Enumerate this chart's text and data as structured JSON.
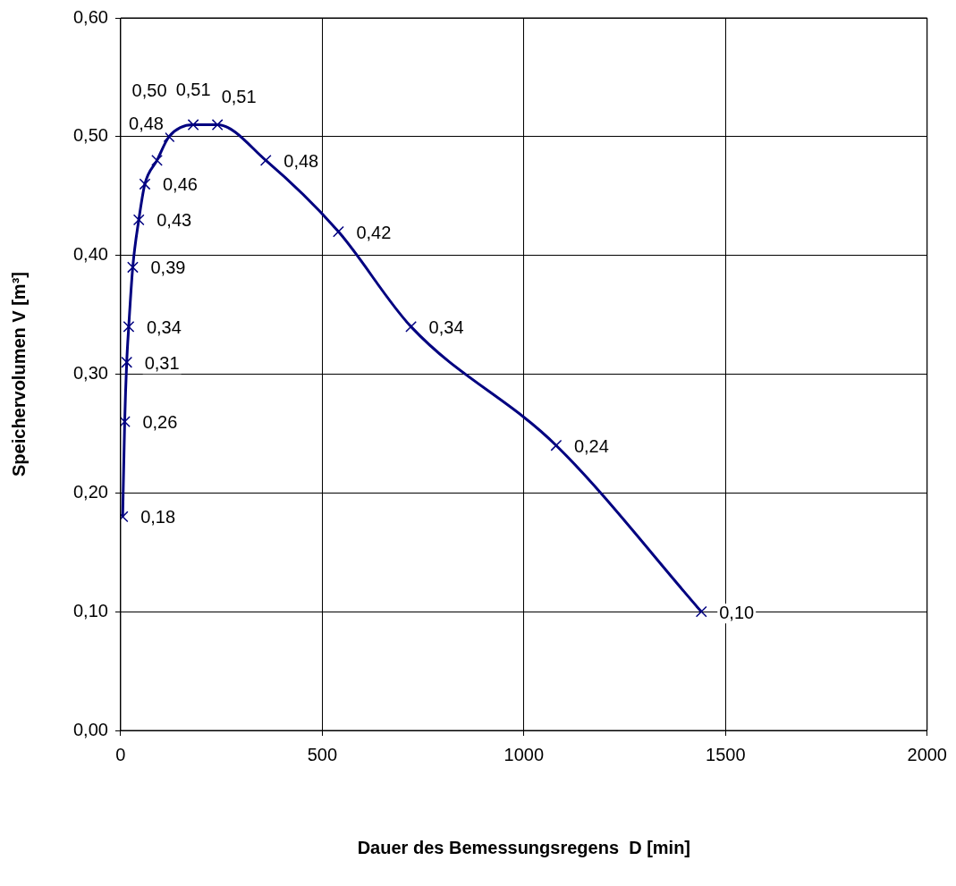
{
  "chart_data": {
    "type": "line",
    "xlabel": "Dauer des Bemessungsregens  D [min]",
    "ylabel": "Speichervolumen V [m³]",
    "x": [
      5,
      10,
      15,
      20,
      30,
      45,
      60,
      90,
      120,
      180,
      240,
      360,
      540,
      720,
      1080,
      1440
    ],
    "series": [
      {
        "color": "#000080",
        "values": [
          0.18,
          0.26,
          0.31,
          0.34,
          0.39,
          0.43,
          0.46,
          0.48,
          0.5,
          0.51,
          0.51,
          0.48,
          0.42,
          0.34,
          0.24,
          0.1
        ],
        "value_labels": [
          "0,18",
          "0,26",
          "0,31",
          "0,34",
          "0,39",
          "0,43",
          "0,46",
          "0,48",
          "0,50",
          "0,51",
          "0,51",
          "0,48",
          "0,42",
          "0,34",
          "0,24",
          "0,10"
        ]
      }
    ],
    "xlim": [
      0,
      2000
    ],
    "xticks": [
      0,
      500,
      1000,
      1500,
      2000
    ],
    "ylim": [
      0,
      0.6
    ],
    "yticks": [
      {
        "value": 0,
        "label": "0,00"
      },
      {
        "value": 0.1,
        "label": "0,10"
      },
      {
        "value": 0.2,
        "label": "0,20"
      },
      {
        "value": 0.3,
        "label": "0,30"
      },
      {
        "value": 0.4,
        "label": "0,40"
      },
      {
        "value": 0.5,
        "label": "0,50"
      },
      {
        "value": 0.6,
        "label": "0,60"
      }
    ],
    "grid": true,
    "legend": false,
    "marker": "cross",
    "line_style": "solid"
  }
}
